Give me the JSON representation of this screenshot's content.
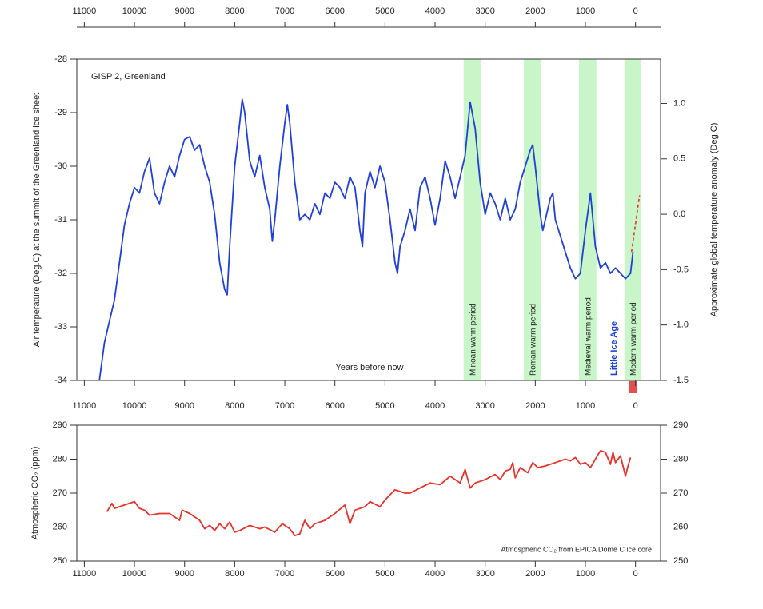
{
  "chart_data": [
    {
      "type": "line",
      "annotations": [
        "GISP 2, Greenland",
        "Years before now",
        "Little Ice Age"
      ],
      "ylabel": "Air temperature (Deg.C) at the summit of the Greenland ice sheet",
      "y2label": "Approximate global temperature anomaly (Deg.C)",
      "xlim": [
        11150,
        -500
      ],
      "xticks": [
        11000,
        10000,
        9000,
        8000,
        7000,
        6000,
        5000,
        4000,
        3000,
        2000,
        1000,
        0
      ],
      "ylim": [
        -34,
        -28
      ],
      "yticks": [
        -34,
        -33,
        -32,
        -31,
        -30,
        -29,
        -28
      ],
      "y2lim": [
        -1.5,
        1.4
      ],
      "y2ticks": [
        -1.5,
        {
          "value": -1.0,
          "label": "-1.0"
        },
        -0.5,
        {
          "value": 0.0,
          "label": "0.0"
        },
        0.5,
        {
          "value": 1.0,
          "label": "1.0"
        }
      ],
      "band_color": "#c8f6c8",
      "bands": [
        {
          "from": 3430,
          "to": 3080,
          "label": "Minoan warm period"
        },
        {
          "from": 2230,
          "to": 1880,
          "label": "Roman warm period"
        },
        {
          "from": 1130,
          "to": 780,
          "label": "Medieval warm period"
        },
        {
          "from": 220,
          "to": -110,
          "label": "Modern warm period"
        }
      ],
      "series": [
        {
          "color": "#1f3fd8",
          "x": [
            10700,
            10600,
            10500,
            10400,
            10300,
            10200,
            10100,
            10000,
            9900,
            9800,
            9700,
            9600,
            9500,
            9400,
            9300,
            9200,
            9100,
            9000,
            8900,
            8800,
            8700,
            8600,
            8500,
            8400,
            8300,
            8200,
            8150,
            8100,
            8000,
            7900,
            7850,
            7800,
            7700,
            7600,
            7500,
            7400,
            7300,
            7250,
            7200,
            7100,
            7000,
            6950,
            6900,
            6800,
            6700,
            6600,
            6500,
            6400,
            6300,
            6200,
            6100,
            6000,
            5900,
            5800,
            5700,
            5600,
            5500,
            5450,
            5400,
            5300,
            5200,
            5100,
            5000,
            4900,
            4800,
            4750,
            4700,
            4600,
            4500,
            4400,
            4300,
            4200,
            4100,
            4000,
            3900,
            3800,
            3700,
            3600,
            3500,
            3400,
            3300,
            3200,
            3100,
            3000,
            2900,
            2800,
            2700,
            2600,
            2500,
            2400,
            2300,
            2200,
            2100,
            2050,
            2000,
            1900,
            1850,
            1800,
            1700,
            1650,
            1600,
            1500,
            1400,
            1300,
            1200,
            1100,
            1000,
            900,
            800,
            700,
            600,
            500,
            400,
            300,
            200,
            100,
            50
          ],
          "values": [
            -34,
            -33.3,
            -32.9,
            -32.5,
            -31.8,
            -31.1,
            -30.7,
            -30.4,
            -30.5,
            -30.1,
            -29.85,
            -30.5,
            -30.7,
            -30.3,
            -30.0,
            -30.2,
            -29.8,
            -29.5,
            -29.45,
            -29.7,
            -29.6,
            -30.0,
            -30.3,
            -30.9,
            -31.8,
            -32.3,
            -32.4,
            -31.5,
            -30.0,
            -29.2,
            -28.75,
            -29.0,
            -29.9,
            -30.2,
            -29.8,
            -30.4,
            -30.8,
            -31.4,
            -31.0,
            -30.0,
            -29.2,
            -28.85,
            -29.2,
            -30.3,
            -31.0,
            -30.9,
            -31.0,
            -30.7,
            -30.9,
            -30.5,
            -30.6,
            -30.3,
            -30.4,
            -30.6,
            -30.2,
            -30.4,
            -31.2,
            -31.5,
            -30.5,
            -30.1,
            -30.4,
            -30.0,
            -30.3,
            -31.0,
            -31.8,
            -32.0,
            -31.5,
            -31.2,
            -30.8,
            -31.2,
            -30.4,
            -30.2,
            -30.6,
            -31.1,
            -30.6,
            -29.9,
            -30.2,
            -30.6,
            -30.2,
            -29.8,
            -28.8,
            -29.3,
            -30.3,
            -30.9,
            -30.5,
            -30.7,
            -31.0,
            -30.6,
            -31.0,
            -30.8,
            -30.3,
            -30.0,
            -29.7,
            -29.6,
            -30.0,
            -30.9,
            -31.2,
            -31.0,
            -30.6,
            -30.5,
            -31.0,
            -31.3,
            -31.6,
            -31.9,
            -32.1,
            -32.0,
            -31.2,
            -30.5,
            -31.5,
            -31.9,
            -31.8,
            -32.0,
            -31.9,
            -32.0,
            -32.1,
            -32.0,
            -31.6
          ]
        },
        {
          "color": "#e8322a",
          "axis": "y2",
          "dashed": true,
          "x": [
            80,
            -80
          ],
          "values": [
            -0.34,
            0.17
          ]
        }
      ]
    },
    {
      "type": "line",
      "ylabel": "Atmospheric CO₂ (ppm)",
      "annotation": "Atmospheric CO₂ from EPICA Dome C ice core",
      "xlim": [
        11150,
        -500
      ],
      "xticks": [
        11000,
        10000,
        9000,
        8000,
        7000,
        6000,
        5000,
        4000,
        3000,
        2000,
        1000,
        0
      ],
      "ylim": [
        250,
        290
      ],
      "yticks": [
        250,
        260,
        270,
        280,
        290
      ],
      "series": [
        {
          "color": "#e8322a",
          "x": [
            10550,
            10450,
            10400,
            10200,
            10000,
            9900,
            9800,
            9700,
            9500,
            9300,
            9100,
            9050,
            8900,
            8800,
            8700,
            8600,
            8500,
            8400,
            8300,
            8200,
            8100,
            8000,
            7900,
            7700,
            7500,
            7400,
            7200,
            7050,
            6900,
            6800,
            6700,
            6600,
            6500,
            6400,
            6200,
            6000,
            5800,
            5700,
            5600,
            5400,
            5300,
            5100,
            5000,
            4800,
            4600,
            4500,
            4300,
            4100,
            3900,
            3700,
            3500,
            3400,
            3300,
            3200,
            3000,
            2800,
            2700,
            2600,
            2500,
            2450,
            2400,
            2300,
            2150,
            2050,
            1950,
            1800,
            1600,
            1400,
            1300,
            1200,
            1100,
            1000,
            900,
            800,
            700,
            600,
            500,
            450,
            400,
            300,
            250,
            200,
            150,
            100
          ],
          "values": [
            264.5,
            267,
            265.5,
            266.5,
            267.5,
            265.5,
            265,
            263.5,
            264,
            264,
            262,
            265,
            264,
            263,
            262,
            259.5,
            260.5,
            259,
            261,
            259.5,
            261.5,
            258.5,
            259,
            260.5,
            259.5,
            260,
            258.5,
            261,
            259.5,
            257.5,
            258,
            262,
            259.5,
            261,
            262,
            264,
            266.5,
            261,
            265,
            266,
            267.5,
            266,
            268,
            271,
            270,
            270,
            271.5,
            273,
            272.5,
            275,
            273,
            277,
            271.5,
            273,
            274,
            275.5,
            274,
            276.5,
            277,
            279,
            274.5,
            277.5,
            276,
            279,
            277.5,
            278,
            279,
            280,
            279.5,
            280.5,
            278.5,
            279,
            277.5,
            280,
            282.5,
            282,
            278.5,
            282,
            279,
            281,
            278,
            275,
            278,
            280.5
          ]
        }
      ]
    }
  ]
}
